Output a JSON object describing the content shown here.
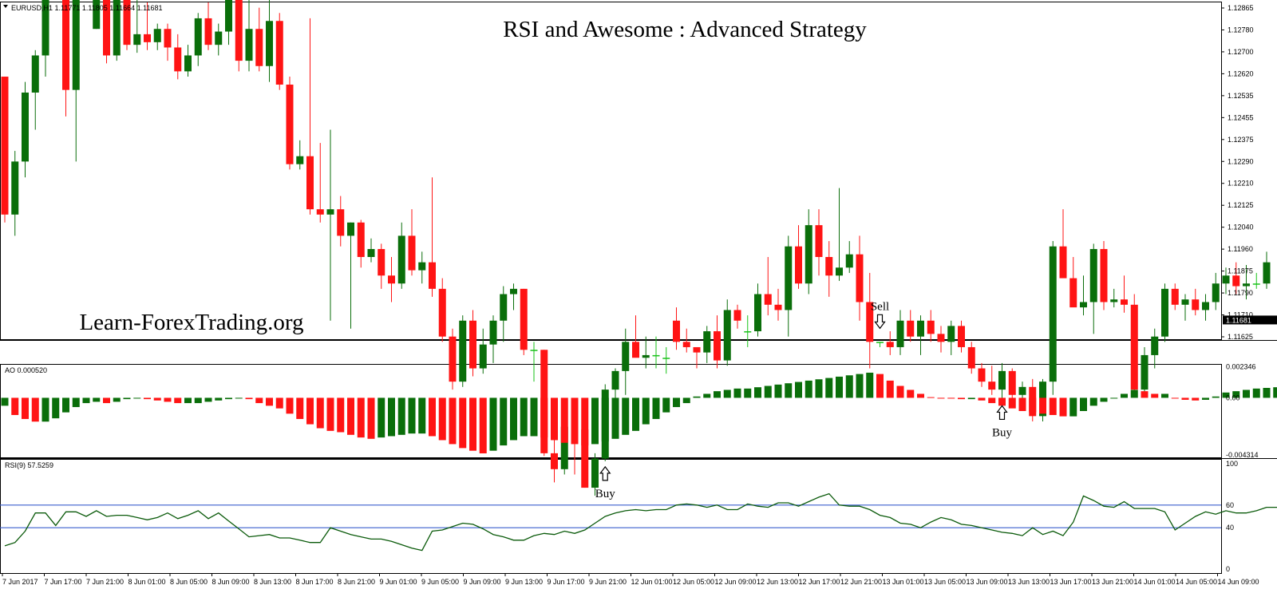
{
  "header": {
    "symbol_info": "EURUSD,H1  1.11771 1.11805 1.11664 1.11681",
    "title": "RSI and Awesome : Advanced Strategy",
    "brand": "Learn-ForexTrading.org"
  },
  "colors": {
    "bull": "#0a6e0a",
    "bear": "#ff1414",
    "rsi_line": "#0a5a0a",
    "level_line": "#3a5fcd",
    "doji": "#19c219"
  },
  "price_axis": {
    "ticks": [
      "1.12865",
      "1.12780",
      "1.12700",
      "1.12620",
      "1.12535",
      "1.12455",
      "1.12375",
      "1.12290",
      "1.12210",
      "1.12125",
      "1.12040",
      "1.11960",
      "1.11875",
      "1.11790",
      "1.11710",
      "1.11625"
    ],
    "current": "1.11681"
  },
  "ao_panel": {
    "label": "AO 0.000520",
    "ticks": [
      "0.002346",
      "0.00",
      "-0.004314"
    ]
  },
  "rsi_panel": {
    "label": "RSI(9) 57.5259",
    "ticks": [
      "100",
      "60",
      "40",
      "0"
    ],
    "levels": [
      60,
      40
    ]
  },
  "time_axis": [
    "7 Jun 2017",
    "7 Jun 17:00",
    "7 Jun 21:00",
    "8 Jun 01:00",
    "8 Jun 05:00",
    "8 Jun 09:00",
    "8 Jun 13:00",
    "8 Jun 17:00",
    "8 Jun 21:00",
    "9 Jun 01:00",
    "9 Jun 05:00",
    "9 Jun 09:00",
    "9 Jun 13:00",
    "9 Jun 17:00",
    "9 Jun 21:00",
    "12 Jun 01:00",
    "12 Jun 05:00",
    "12 Jun 09:00",
    "12 Jun 13:00",
    "12 Jun 17:00",
    "12 Jun 21:00",
    "13 Jun 01:00",
    "13 Jun 05:00",
    "13 Jun 09:00",
    "13 Jun 13:00",
    "13 Jun 17:00",
    "13 Jun 21:00",
    "14 Jun 01:00",
    "14 Jun 05:00",
    "14 Jun 09:00"
  ],
  "signals": [
    {
      "type": "sell",
      "label": "Sell",
      "index": 22
    },
    {
      "type": "buy",
      "label": "Buy",
      "index": 59
    },
    {
      "type": "sell",
      "label": "Sell",
      "index": 86
    },
    {
      "type": "buy",
      "label": "Buy",
      "index": 98
    }
  ],
  "chart_data": {
    "type": "candlestick",
    "candles": [
      [
        1.126,
        1.126,
        1.1205,
        1.1208
      ],
      [
        1.1208,
        1.1232,
        1.12,
        1.1228
      ],
      [
        1.1228,
        1.1258,
        1.1222,
        1.1254
      ],
      [
        1.1254,
        1.127,
        1.124,
        1.1268
      ],
      [
        1.1268,
        1.1302,
        1.126,
        1.1298
      ],
      [
        1.1298,
        1.1329,
        1.129,
        1.13
      ],
      [
        1.13,
        1.1304,
        1.1245,
        1.1255
      ],
      [
        1.1255,
        1.1306,
        1.1228,
        1.1302
      ],
      [
        1.1298,
        1.1306,
        1.129,
        1.1298
      ],
      [
        1.1278,
        1.1298,
        1.1278,
        1.1295
      ],
      [
        1.1295,
        1.1299,
        1.1265,
        1.1268
      ],
      [
        1.1268,
        1.13,
        1.1266,
        1.1297
      ],
      [
        1.1297,
        1.13,
        1.127,
        1.1272
      ],
      [
        1.1272,
        1.1294,
        1.1269,
        1.1276
      ],
      [
        1.1276,
        1.1288,
        1.127,
        1.1273
      ],
      [
        1.1273,
        1.128,
        1.127,
        1.1278
      ],
      [
        1.1278,
        1.128,
        1.1266,
        1.1271
      ],
      [
        1.1271,
        1.1276,
        1.1259,
        1.1262
      ],
      [
        1.1262,
        1.1272,
        1.126,
        1.1268
      ],
      [
        1.1268,
        1.1284,
        1.1264,
        1.1282
      ],
      [
        1.1282,
        1.1288,
        1.127,
        1.1272
      ],
      [
        1.1272,
        1.128,
        1.1268,
        1.1277
      ],
      [
        1.1277,
        1.1292,
        1.1272,
        1.1289
      ],
      [
        1.1289,
        1.1292,
        1.1262,
        1.1266
      ],
      [
        1.1266,
        1.1296,
        1.1262,
        1.1278
      ],
      [
        1.1278,
        1.1286,
        1.1262,
        1.1264
      ],
      [
        1.1264,
        1.129,
        1.1258,
        1.1281
      ],
      [
        1.1281,
        1.1284,
        1.1255,
        1.1257
      ],
      [
        1.1257,
        1.126,
        1.1225,
        1.1227
      ],
      [
        1.1227,
        1.1236,
        1.1225,
        1.123
      ],
      [
        1.123,
        1.1282,
        1.1208,
        1.121
      ],
      [
        1.121,
        1.1235,
        1.1205,
        1.1208
      ],
      [
        1.1208,
        1.124,
        1.1168,
        1.121
      ],
      [
        1.121,
        1.1215,
        1.1196,
        1.12
      ],
      [
        1.12,
        1.1205,
        1.1165,
        1.1205
      ],
      [
        1.1205,
        1.1206,
        1.1188,
        1.1192
      ],
      [
        1.1192,
        1.1199,
        1.119,
        1.1195
      ],
      [
        1.1195,
        1.1197,
        1.118,
        1.1185
      ],
      [
        1.1185,
        1.1192,
        1.1175,
        1.1182
      ],
      [
        1.1182,
        1.1205,
        1.118,
        1.12
      ],
      [
        1.12,
        1.121,
        1.1185,
        1.1187
      ],
      [
        1.1187,
        1.1194,
        1.1182,
        1.119
      ],
      [
        1.119,
        1.1222,
        1.1177,
        1.118
      ],
      [
        1.118,
        1.1184,
        1.116,
        1.1162
      ],
      [
        1.1162,
        1.1165,
        1.1142,
        1.1145
      ],
      [
        1.1145,
        1.117,
        1.1143,
        1.1168
      ],
      [
        1.1168,
        1.1172,
        1.1147,
        1.115
      ],
      [
        1.115,
        1.1165,
        1.1148,
        1.1159
      ],
      [
        1.1159,
        1.117,
        1.1152,
        1.1168
      ],
      [
        1.1168,
        1.1181,
        1.116,
        1.1178
      ],
      [
        1.1178,
        1.1182,
        1.1172,
        1.118
      ],
      [
        1.118,
        1.118,
        1.1155,
        1.1157
      ],
      [
        1.1157,
        1.116,
        1.1145,
        1.1157
      ],
      [
        1.1157,
        1.1157,
        1.1117,
        1.1118
      ],
      [
        1.1118,
        1.1132,
        1.1107,
        1.1112
      ],
      [
        1.1112,
        1.113,
        1.111,
        1.1128
      ],
      [
        1.1128,
        1.1129,
        1.111,
        1.1127
      ],
      [
        1.1127,
        1.1127,
        1.1105,
        1.1105
      ],
      [
        1.1105,
        1.1118,
        1.1102,
        1.1116
      ],
      [
        1.1116,
        1.1144,
        1.1115,
        1.1142
      ],
      [
        1.1142,
        1.115,
        1.113,
        1.1149
      ],
      [
        1.1149,
        1.1165,
        1.114,
        1.116
      ],
      [
        1.116,
        1.117,
        1.1155,
        1.1154
      ],
      [
        1.1154,
        1.1162,
        1.115,
        1.1155
      ],
      [
        1.1155,
        1.1162,
        1.115,
        1.1155
      ],
      [
        1.1154,
        1.1158,
        1.1148,
        1.1154
      ],
      [
        1.1168,
        1.1173,
        1.1157,
        1.116
      ],
      [
        1.116,
        1.1165,
        1.1156,
        1.1158
      ],
      [
        1.1158,
        1.1158,
        1.115,
        1.1156
      ],
      [
        1.1156,
        1.1166,
        1.1152,
        1.1164
      ],
      [
        1.1164,
        1.117,
        1.115,
        1.1153
      ],
      [
        1.1153,
        1.1176,
        1.1151,
        1.1172
      ],
      [
        1.1172,
        1.1174,
        1.1165,
        1.1168
      ],
      [
        1.1164,
        1.117,
        1.1158,
        1.1164
      ],
      [
        1.1164,
        1.1182,
        1.1162,
        1.1178
      ],
      [
        1.1178,
        1.1192,
        1.117,
        1.1174
      ],
      [
        1.1174,
        1.118,
        1.1168,
        1.1172
      ],
      [
        1.1172,
        1.12,
        1.1162,
        1.1196
      ],
      [
        1.1196,
        1.1204,
        1.118,
        1.1182
      ],
      [
        1.1182,
        1.121,
        1.1178,
        1.1204
      ],
      [
        1.1204,
        1.121,
        1.1185,
        1.1192
      ],
      [
        1.1192,
        1.1198,
        1.1177,
        1.1185
      ],
      [
        1.1185,
        1.1218,
        1.1183,
        1.1188
      ],
      [
        1.1188,
        1.1198,
        1.1186,
        1.1193
      ],
      [
        1.1193,
        1.12,
        1.1168,
        1.1175
      ],
      [
        1.1175,
        1.1186,
        1.115,
        1.116
      ],
      [
        1.116,
        1.116,
        1.1158,
        1.116
      ],
      [
        1.116,
        1.1164,
        1.1155,
        1.1158
      ],
      [
        1.1158,
        1.1172,
        1.1155,
        1.1168
      ],
      [
        1.1168,
        1.1172,
        1.116,
        1.1162
      ],
      [
        1.1162,
        1.117,
        1.1155,
        1.1168
      ],
      [
        1.1168,
        1.1172,
        1.116,
        1.1163
      ],
      [
        1.1163,
        1.1166,
        1.1156,
        1.116
      ],
      [
        1.116,
        1.1168,
        1.1155,
        1.1166
      ],
      [
        1.1166,
        1.1168,
        1.1156,
        1.1158
      ],
      [
        1.1158,
        1.116,
        1.1148,
        1.115
      ],
      [
        1.115,
        1.1152,
        1.1143,
        1.1145
      ],
      [
        1.1145,
        1.1151,
        1.114,
        1.1142
      ],
      [
        1.1142,
        1.1152,
        1.1138,
        1.1149
      ],
      [
        1.1149,
        1.115,
        1.1138,
        1.114
      ],
      [
        1.114,
        1.1145,
        1.1136,
        1.1143
      ],
      [
        1.1143,
        1.1146,
        1.113,
        1.1132
      ],
      [
        1.1132,
        1.1146,
        1.113,
        1.1145
      ],
      [
        1.1145,
        1.1198,
        1.114,
        1.1196
      ],
      [
        1.1196,
        1.121,
        1.1185,
        1.1184
      ],
      [
        1.1184,
        1.1192,
        1.1175,
        1.1173
      ],
      [
        1.1173,
        1.1185,
        1.117,
        1.1175
      ],
      [
        1.1175,
        1.1197,
        1.1163,
        1.1195
      ],
      [
        1.1195,
        1.1198,
        1.1172,
        1.1175
      ],
      [
        1.1175,
        1.118,
        1.1173,
        1.1176
      ],
      [
        1.1176,
        1.1185,
        1.1171,
        1.1174
      ],
      [
        1.1174,
        1.1178,
        1.114,
        1.1142
      ],
      [
        1.1142,
        1.1158,
        1.114,
        1.1155
      ],
      [
        1.1155,
        1.1165,
        1.115,
        1.1162
      ],
      [
        1.1162,
        1.1182,
        1.116,
        1.118
      ],
      [
        1.118,
        1.1182,
        1.1172,
        1.1174
      ],
      [
        1.1174,
        1.1178,
        1.1168,
        1.1176
      ],
      [
        1.1176,
        1.118,
        1.117,
        1.1172
      ],
      [
        1.1172,
        1.1178,
        1.1168,
        1.1175
      ],
      [
        1.1175,
        1.1186,
        1.1172,
        1.1182
      ],
      [
        1.1182,
        1.1188,
        1.1178,
        1.1185
      ],
      [
        1.1185,
        1.119,
        1.1178,
        1.1181
      ],
      [
        1.1181,
        1.1189,
        1.1176,
        1.1182
      ],
      [
        1.1182,
        1.1186,
        1.118,
        1.1182
      ],
      [
        1.1182,
        1.1194,
        1.118,
        1.119
      ]
    ],
    "ao": [
      -0.0006,
      -0.0013,
      -0.0016,
      -0.0018,
      -0.0018,
      -0.00155,
      -0.0011,
      -0.0007,
      -0.0004,
      -0.0003,
      -0.0004,
      -0.0003,
      -0.0001,
      0,
      -0.0001,
      -0.0002,
      -0.0003,
      -0.0004,
      -0.0004,
      -0.0004,
      -0.0003,
      -0.0002,
      -0.0001,
      0.0,
      -0.0001,
      -0.0004,
      -0.0006,
      -0.0008,
      -0.0012,
      -0.0016,
      -0.002,
      -0.0023,
      -0.0025,
      -0.0026,
      -0.0028,
      -0.003,
      -0.0031,
      -0.003,
      -0.0029,
      -0.0028,
      -0.0027,
      -0.0027,
      -0.0029,
      -0.0032,
      -0.0035,
      -0.0038,
      -0.004,
      -0.0042,
      -0.004,
      -0.0036,
      -0.0032,
      -0.0029,
      -0.0029,
      -0.003,
      -0.0032,
      -0.0034,
      -0.0035,
      -0.0036,
      -0.0035,
      -0.0033,
      -0.0031,
      -0.0028,
      -0.0025,
      -0.002,
      -0.0016,
      -0.0011,
      -0.0007,
      -0.0004,
      0.0001,
      0.0003,
      0.0005,
      0.0006,
      0.0007,
      0.0007,
      0.0008,
      0.0009,
      0.001,
      0.0011,
      0.0012,
      0.0013,
      0.0014,
      0.0015,
      0.0016,
      0.0017,
      0.0018,
      0.0019,
      0.0018,
      0.0013,
      0.0009,
      0.0006,
      0.0003,
      5e-05,
      0.0,
      -5e-05,
      -0.0001,
      -0.0001,
      -0.0002,
      -0.0004,
      -0.0006,
      -0.0008,
      -0.001,
      -0.0011,
      -0.0012,
      -0.0013,
      -0.0014,
      -0.0014,
      -0.001,
      -0.0006,
      -0.0003,
      0.0,
      0.0003,
      0.0006,
      0.0005,
      0.0003,
      0.0003,
      -5e-05,
      -0.00015,
      -0.0002,
      -0.00015,
      0.0001,
      0.0004,
      0.0005,
      0.0006,
      0.0007,
      0.00075,
      0.0008,
      0.00085,
      0.0009,
      0.00095
    ],
    "rsi": [
      24,
      27,
      37,
      53,
      53,
      42,
      54,
      54,
      50,
      55,
      50,
      51,
      51,
      49,
      47,
      49,
      53,
      48,
      51,
      55,
      48,
      53,
      46,
      39,
      32,
      33,
      34,
      31,
      31,
      29,
      27,
      27,
      40,
      37,
      34,
      32,
      30,
      30,
      28,
      25,
      22,
      20,
      37,
      38,
      41,
      44,
      43,
      39,
      34,
      32,
      29,
      29,
      33,
      35,
      34,
      37,
      35,
      38,
      44,
      50,
      53,
      55,
      56,
      55,
      56,
      56,
      60,
      61,
      60,
      58,
      60,
      56,
      56,
      61,
      59,
      58,
      62,
      62,
      59,
      63,
      67,
      70,
      60,
      59,
      59,
      56,
      51,
      49,
      44,
      43,
      40,
      45,
      49,
      47,
      43,
      42,
      40,
      38,
      36,
      35,
      33,
      40,
      34,
      37,
      33,
      45,
      68,
      64,
      59,
      58,
      63,
      57,
      57,
      57,
      54,
      38,
      44,
      50,
      54,
      52,
      55,
      53,
      53,
      55,
      58,
      58,
      56,
      59,
      60,
      62,
      66,
      67
    ]
  }
}
